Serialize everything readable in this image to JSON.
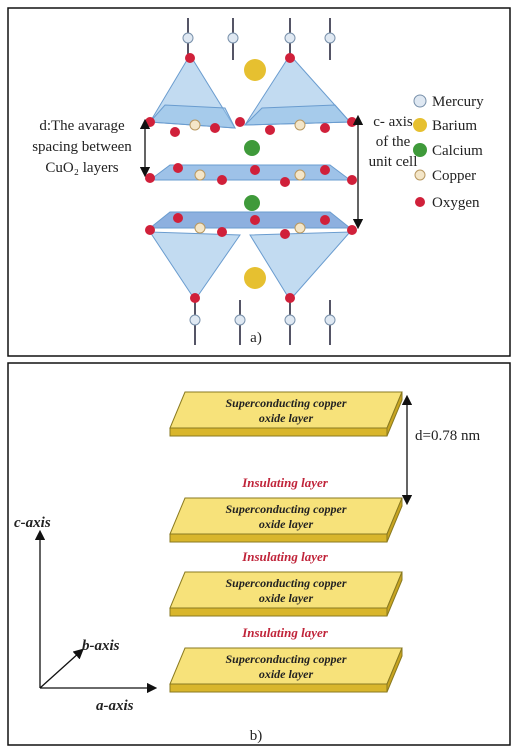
{
  "panel_a": {
    "left_annotation": [
      "d:The avarage",
      "spacing between",
      "CuO₂ layers"
    ],
    "right_annotation": [
      "c- axis",
      "of the",
      "unit cell"
    ],
    "legend": [
      "Mercury",
      "Barium",
      "Calcium",
      "Copper",
      "Oxygen"
    ],
    "caption": "a)"
  },
  "panel_b": {
    "layers": [
      [
        "Superconducting copper",
        "oxide layer"
      ],
      [
        "Superconducting copper",
        "oxide layer"
      ],
      [
        "Superconducting copper",
        "oxide layer"
      ],
      [
        "Superconducting copper",
        "oxide layer"
      ]
    ],
    "insulating": [
      "Insulating layer",
      "Insulating layer",
      "Insulating layer"
    ],
    "spacing": "d=0.78 nm",
    "axes": {
      "c": "c-axis",
      "b": "b-axis",
      "a": "a-axis"
    },
    "caption": "b)"
  }
}
